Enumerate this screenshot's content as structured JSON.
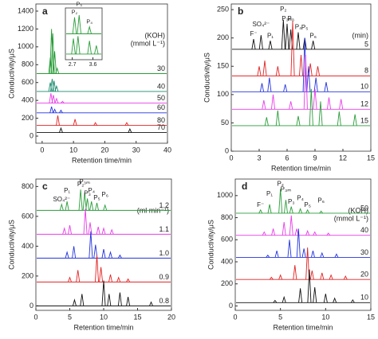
{
  "chart_data": [
    {
      "type": "chromatogram",
      "panel_label": "a",
      "xlabel": "Retention time/min",
      "ylabel": "Conductivity/μS",
      "xlim": [
        -2,
        40
      ],
      "ylim": [
        -80,
        1480
      ],
      "xticks": [
        0,
        10,
        20,
        30,
        40
      ],
      "yticks": [
        0,
        200,
        400,
        600,
        800,
        1000,
        1200,
        1400
      ],
      "legend_title": [
        "(KOH)",
        "(mmol L⁻¹)"
      ],
      "series": [
        {
          "name": "30",
          "color": "#2a9d3a",
          "baseline": 700,
          "peaks": {
            "x": [
              2.6,
              3.0,
              3.4,
              4.0,
              4.8
            ],
            "values": [
              880,
              1200,
              1150,
              950,
              760
            ]
          }
        },
        {
          "name": "40",
          "color": "#1a8a6e",
          "baseline": 500,
          "peaks": {
            "x": [
              2.6,
              3.2,
              3.8,
              4.6
            ],
            "values": [
              600,
              640,
              620,
              560
            ]
          }
        },
        {
          "name": "50",
          "color": "#e83ee8",
          "baseline": 370,
          "peaks": {
            "x": [
              2.8,
              3.6,
              4.6,
              6.5
            ],
            "values": [
              480,
              460,
              420,
              390
            ]
          }
        },
        {
          "name": "60",
          "color": "#2233dd",
          "baseline": 260,
          "peaks": {
            "x": [
              3,
              4,
              6
            ],
            "values": [
              330,
              300,
              290
            ]
          }
        },
        {
          "name": "80",
          "color": "#e32222",
          "baseline": 120,
          "peaks": {
            "x": [
              5,
              10.5,
              17,
              27
            ],
            "values": [
              230,
              190,
              150,
              150
            ]
          }
        },
        {
          "name": "70",
          "color": "#111111",
          "baseline": 40,
          "peaks": {
            "x": [
              6,
              28
            ],
            "values": [
              90,
              80
            ]
          }
        }
      ]
    },
    {
      "type": "chromatogram",
      "xlim": [
        2.4,
        4.0
      ],
      "ylim": [
        0,
        110
      ],
      "xticks": [
        2.7,
        3.6
      ],
      "series": [
        {
          "color": "#2a9d3a",
          "baseline": 55,
          "peaks": {
            "x": [
              2.8,
              3.0,
              3.45
            ],
            "values": [
              90,
              95,
              70
            ]
          }
        },
        {
          "color": "#2a9d3a",
          "baseline": 12,
          "peaks": {
            "x": [
              2.75,
              2.95,
              3.45,
              3.75
            ],
            "values": [
              45,
              50,
              40,
              30
            ]
          }
        }
      ],
      "peak_labels": [
        "P₂",
        "P₃",
        "P₄"
      ]
    },
    {
      "type": "chromatogram",
      "panel_label": "b",
      "xlabel": "Retention time/min",
      "ylabel": "Conductivity/μS",
      "xlim": [
        0,
        15
      ],
      "ylim": [
        0,
        260
      ],
      "xticks": [
        0,
        3,
        6,
        9,
        12,
        15
      ],
      "yticks": [
        0,
        50,
        100,
        150,
        200,
        250
      ],
      "legend_title": [
        "(min)"
      ],
      "series": [
        {
          "name": "5",
          "color": "#111111",
          "baseline": 180,
          "peaks": {
            "x": [
              2.4,
              3.2,
              4.2,
              5.6,
              6.0,
              6.4,
              7.2,
              7.9,
              8.8
            ],
            "values": [
              198,
              205,
              195,
              232,
              225,
              215,
              210,
              200,
              195
            ]
          }
        },
        {
          "name": "8",
          "color": "#e32222",
          "baseline": 133,
          "peaks": {
            "x": [
              3.0,
              3.6,
              5.0,
              6.6,
              7.5,
              8.5,
              9.3
            ],
            "values": [
              150,
              160,
              150,
              230,
              170,
              155,
              150
            ]
          }
        },
        {
          "name": "10",
          "color": "#2233dd",
          "baseline": 105,
          "peaks": {
            "x": [
              3.3,
              4.1,
              5.8,
              7.9,
              8.3,
              9.1,
              10.2
            ],
            "values": [
              120,
              130,
              118,
              200,
              150,
              130,
              122
            ]
          }
        },
        {
          "name": "12",
          "color": "#e83ee8",
          "baseline": 74,
          "peaks": {
            "x": [
              3.5,
              4.5,
              6.4,
              8.0,
              9.0,
              10.5,
              11.8
            ],
            "values": [
              90,
              100,
              88,
              170,
              110,
              95,
              92
            ]
          }
        },
        {
          "name": "15",
          "color": "#2a9d3a",
          "baseline": 45,
          "peaks": {
            "x": [
              3.8,
              5.0,
              7.2,
              8.6,
              9.6,
              11.6,
              13.3
            ],
            "values": [
              60,
              72,
              62,
              110,
              88,
              70,
              65
            ]
          }
        }
      ],
      "peak_labels": [
        "F⁻",
        "SO₄²⁻",
        "P₁",
        "P₂",
        "P₃ₘ",
        "P₃",
        "P₄",
        "P₅",
        "P₆"
      ]
    },
    {
      "type": "chromatogram",
      "panel_label": "c",
      "xlabel": "Retention time/min",
      "ylabel": "Conductivity/μS",
      "xlim": [
        0,
        20
      ],
      "ylim": [
        -30,
        850
      ],
      "xticks": [
        0,
        5,
        10,
        15,
        20
      ],
      "yticks": [
        0,
        200,
        400,
        600,
        800
      ],
      "legend_title": [
        "(ml min⁻¹)"
      ],
      "series": [
        {
          "name": "1.2",
          "color": "#2a9d3a",
          "baseline": 640,
          "peaks": {
            "x": [
              3.8,
              4.6,
              6.6,
              7.2,
              7.6,
              8.2,
              9.0,
              10.2
            ],
            "values": [
              680,
              700,
              780,
              760,
              720,
              700,
              690,
              675
            ]
          }
        },
        {
          "name": "1.1",
          "color": "#e83ee8",
          "baseline": 480,
          "peaks": {
            "x": [
              4.2,
              5.0,
              7.3,
              8.0,
              9.2,
              10,
              11.2
            ],
            "values": [
              520,
              540,
              650,
              560,
              530,
              520,
              510
            ]
          }
        },
        {
          "name": "1.0",
          "color": "#2233dd",
          "baseline": 320,
          "peaks": {
            "x": [
              4.6,
              5.6,
              8.1,
              8.8,
              10,
              11,
              12.4
            ],
            "values": [
              360,
              400,
              500,
              410,
              380,
              360,
              340
            ]
          }
        },
        {
          "name": "0.9",
          "color": "#e32222",
          "baseline": 160,
          "peaks": {
            "x": [
              5,
              6.2,
              9.0,
              9.6,
              11,
              12.2,
              13.6
            ],
            "values": [
              190,
              240,
              340,
              260,
              210,
              190,
              180
            ]
          }
        },
        {
          "name": "0.8",
          "color": "#111111",
          "baseline": 0,
          "peaks": {
            "x": [
              5.7,
              6.8,
              10,
              10.8,
              12.4,
              13.6,
              17
            ],
            "values": [
              40,
              80,
              170,
              80,
              90,
              60,
              25
            ]
          }
        }
      ],
      "peak_labels": [
        "SO₄²⁻",
        "P₁",
        "P₂",
        "P₃ₘ",
        "P₃",
        "P₄",
        "P₅",
        "P₆"
      ]
    },
    {
      "type": "chromatogram",
      "panel_label": "d",
      "xlabel": "Retention time/min",
      "ylabel": "Conductivity/μS",
      "xlim": [
        0,
        15
      ],
      "ylim": [
        -40,
        1150
      ],
      "xticks": [
        0,
        5,
        10,
        15
      ],
      "yticks": [
        0,
        200,
        400,
        600,
        800,
        1000
      ],
      "legend_title": [
        "(KOH)",
        "(mmol L⁻¹)"
      ],
      "series": [
        {
          "name": "50",
          "color": "#2a9d3a",
          "baseline": 840,
          "peaks": {
            "x": [
              2.8,
              3.8,
              5.0,
              5.6,
              6.2,
              7.2,
              8.0,
              9.5
            ],
            "values": [
              870,
              920,
              1060,
              960,
              900,
              880,
              870,
              860
            ]
          }
        },
        {
          "name": "40",
          "color": "#e83ee8",
          "baseline": 640,
          "peaks": {
            "x": [
              3.2,
              4.2,
              5.4,
              6.2,
              6.8,
              8.0,
              8.8,
              10.3
            ],
            "values": [
              670,
              700,
              760,
              820,
              700,
              680,
              670,
              660
            ]
          }
        },
        {
          "name": "30",
          "color": "#2233dd",
          "baseline": 440,
          "peaks": {
            "x": [
              3.6,
              4.6,
              6.0,
              7.0,
              7.6,
              8.6,
              9.6,
              11.2
            ],
            "values": [
              460,
              500,
              600,
              700,
              520,
              500,
              480,
              470
            ]
          }
        },
        {
          "name": "20",
          "color": "#e32222",
          "baseline": 240,
          "peaks": {
            "x": [
              4,
              5,
              6.6,
              8.0,
              8.5,
              9.6,
              10.6,
              12.2
            ],
            "values": [
              260,
              280,
              370,
              530,
              320,
              300,
              280,
              270
            ]
          }
        },
        {
          "name": "10",
          "color": "#111111",
          "baseline": 30,
          "peaks": {
            "x": [
              4.4,
              5.4,
              7.2,
              8.2,
              8.8,
              10,
              11,
              13
            ],
            "values": [
              50,
              80,
              160,
              330,
              170,
              110,
              70,
              55
            ]
          }
        }
      ],
      "peak_labels": [
        "F⁻",
        "P₁",
        "P₂",
        "P₃ₘ",
        "P₃",
        "P₄",
        "P₅",
        "P₆"
      ]
    }
  ]
}
